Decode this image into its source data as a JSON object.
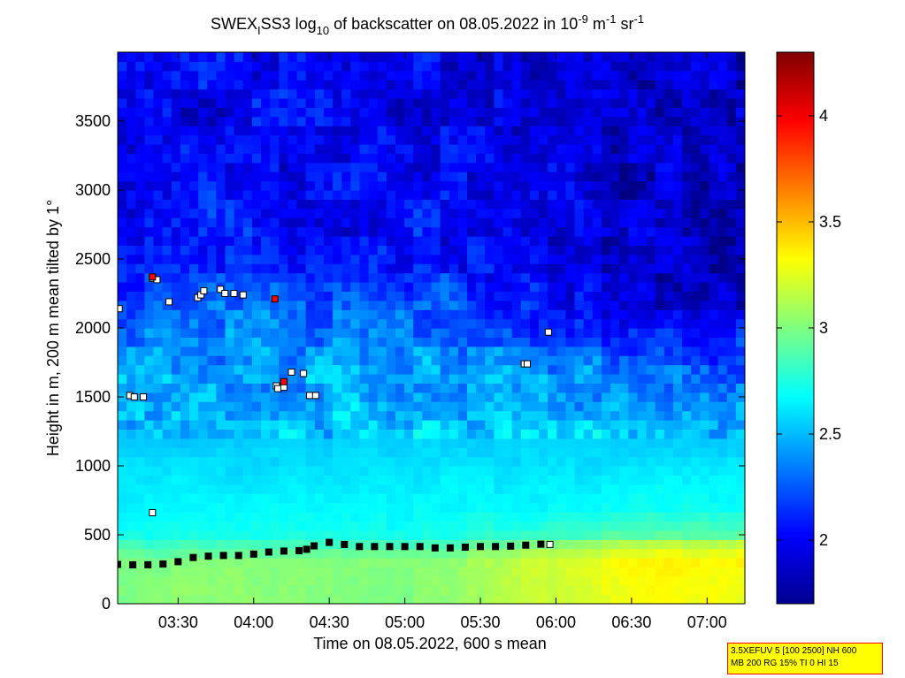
{
  "figure": {
    "title": {
      "main": "SWEX",
      "sub_station": "I",
      "after_station": "SS3 log",
      "log_base": "10",
      "rest": " of backscatter on 08.05.2022 in 10",
      "exp1": "-9",
      "unit_m": " m",
      "exp2": "-1",
      "unit_sr": " sr",
      "exp3": "-1"
    },
    "xlabel": "Time on 08.05.2022, 600 s mean",
    "ylabel": "Height in m, 200 m mean tilted by 1°"
  },
  "info_box": {
    "line1": "3.5XEFUV 5 [100 2500] NH 600",
    "line2": "MB 200 RG 15% TI 0 HI 15"
  },
  "colors": {
    "box_bg": "#ffff00",
    "box_border": "#ff0000",
    "marker_black": "#000000",
    "marker_red": "#ff0000",
    "marker_white": "#ffffff"
  },
  "chart_data": {
    "type": "heatmap",
    "title": "SWEX_I SS3 log10 of backscatter on 08.05.2022 in 10^-9 m^-1 sr^-1",
    "xlabel": "Time on 08.05.2022, 600 s mean",
    "ylabel": "Height in m, 200 m mean tilted by 1°",
    "x_unit": "hours of day (decimal)",
    "xlim": [
      3.1,
      7.25
    ],
    "ylim": [
      0,
      4000
    ],
    "x_ticks": [
      {
        "value": 3.5,
        "label": "03:30"
      },
      {
        "value": 4.0,
        "label": "04:00"
      },
      {
        "value": 4.5,
        "label": "04:30"
      },
      {
        "value": 5.0,
        "label": "05:00"
      },
      {
        "value": 5.5,
        "label": "05:30"
      },
      {
        "value": 6.0,
        "label": "06:00"
      },
      {
        "value": 6.5,
        "label": "06:30"
      },
      {
        "value": 7.0,
        "label": "07:00"
      }
    ],
    "y_ticks": [
      0,
      500,
      1000,
      1500,
      2000,
      2500,
      3000,
      3500
    ],
    "colorbar": {
      "colormap": "jet",
      "clim": [
        1.7,
        4.3
      ],
      "ticks": [
        2,
        2.5,
        3,
        3.5,
        4
      ],
      "tick_labels": [
        "2",
        "2.5",
        "3",
        "3.5",
        "4"
      ]
    },
    "field_profile": {
      "heights": [
        0,
        200,
        300,
        350,
        450,
        500,
        700,
        1000,
        1300,
        1500,
        1700,
        1900,
        2100,
        2300,
        2500,
        2700,
        3000,
        3500,
        4000
      ],
      "values_early": [
        3.02,
        3.02,
        3.0,
        2.95,
        2.8,
        2.72,
        2.66,
        2.6,
        2.52,
        2.47,
        2.42,
        2.35,
        2.28,
        2.2,
        2.12,
        2.05,
        2.05,
        2.0,
        2.0
      ],
      "values_late": [
        3.3,
        3.32,
        3.35,
        3.3,
        3.12,
        2.9,
        2.7,
        2.6,
        2.52,
        2.42,
        2.3,
        2.1,
        1.95,
        1.9,
        1.88,
        1.87,
        1.87,
        1.87,
        1.87
      ]
    },
    "series": [
      {
        "marker": "square-black",
        "x": [
          3.1,
          3.2,
          3.3,
          3.4,
          3.5,
          3.6,
          3.7,
          3.8,
          3.9,
          4.0,
          4.1,
          4.2,
          4.3,
          4.35,
          4.4,
          4.5,
          4.6,
          4.7,
          4.8,
          4.9,
          5.0,
          5.1,
          5.2,
          5.3,
          5.4,
          5.5,
          5.6,
          5.7,
          5.8,
          5.9
        ],
        "y": [
          285,
          283,
          283,
          288,
          305,
          335,
          345,
          350,
          350,
          360,
          375,
          382,
          385,
          395,
          420,
          445,
          430,
          415,
          415,
          415,
          415,
          415,
          405,
          405,
          410,
          415,
          415,
          418,
          425,
          432
        ]
      },
      {
        "marker": "square-white",
        "x": [
          3.11,
          3.18,
          3.21,
          3.27,
          3.33,
          3.33,
          3.36,
          3.44,
          3.63,
          3.65,
          3.67,
          3.78,
          3.81,
          3.87,
          3.93,
          4.15,
          4.16,
          4.2,
          4.25,
          4.33,
          4.37,
          4.41,
          5.79,
          5.81,
          5.95,
          5.96
        ],
        "y": [
          2140,
          1510,
          1500,
          1500,
          660,
          2360,
          2350,
          2190,
          2220,
          2240,
          2270,
          2280,
          2250,
          2250,
          2240,
          1580,
          1560,
          1570,
          1680,
          1670,
          1510,
          1510,
          1740,
          1740,
          1970,
          430
        ]
      },
      {
        "marker": "square-red",
        "x": [
          3.33,
          4.14,
          4.2
        ],
        "y": [
          2370,
          2210,
          1610
        ]
      }
    ]
  }
}
